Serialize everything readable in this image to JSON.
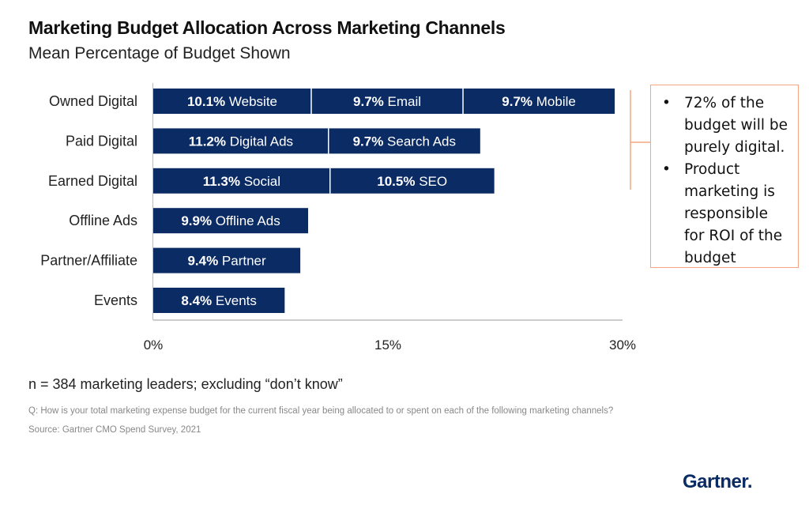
{
  "title": "Marketing Budget Allocation Across Marketing Channels",
  "subtitle": "Mean Percentage of Budget Shown",
  "chart_data": {
    "type": "bar",
    "orientation": "horizontal",
    "stacked": true,
    "categories": [
      "Owned Digital",
      "Paid Digital",
      "Earned Digital",
      "Offline Ads",
      "Partner/Affiliate",
      "Events"
    ],
    "segments": [
      [
        {
          "value": 10.1,
          "value_label": "10.1%",
          "name": "Website"
        },
        {
          "value": 9.7,
          "value_label": "9.7%",
          "name": "Email"
        },
        {
          "value": 9.7,
          "value_label": "9.7%",
          "name": "Mobile"
        }
      ],
      [
        {
          "value": 11.2,
          "value_label": "11.2%",
          "name": "Digital Ads"
        },
        {
          "value": 9.7,
          "value_label": "9.7%",
          "name": "Search Ads"
        }
      ],
      [
        {
          "value": 11.3,
          "value_label": "11.3%",
          "name": "Social"
        },
        {
          "value": 10.5,
          "value_label": "10.5%",
          "name": "SEO"
        }
      ],
      [
        {
          "value": 9.9,
          "value_label": "9.9%",
          "name": "Offline Ads"
        }
      ],
      [
        {
          "value": 9.4,
          "value_label": "9.4%",
          "name": "Partner"
        }
      ],
      [
        {
          "value": 8.4,
          "value_label": "8.4%",
          "name": "Events"
        }
      ]
    ],
    "xlim": [
      0,
      30
    ],
    "xticks": [
      0,
      15,
      30
    ],
    "xtick_labels": [
      "0%",
      "15%",
      "30%"
    ],
    "grid": false,
    "bar_color": "#0b2b64",
    "bracket_color": "#f4a582"
  },
  "callout": {
    "items": [
      "72% of the budget will be purely digital.",
      " Product marketing is responsible for ROI of the budget"
    ],
    "bullet": "•"
  },
  "footnote": {
    "n": "n = 384 marketing leaders; excluding “don’t know”",
    "question": "Q: How is your total marketing expense budget for the current fiscal year being allocated to or spent on each of the following marketing channels?",
    "source": "Source: Gartner CMO Spend Survey, 2021"
  },
  "brand": "Gartner."
}
